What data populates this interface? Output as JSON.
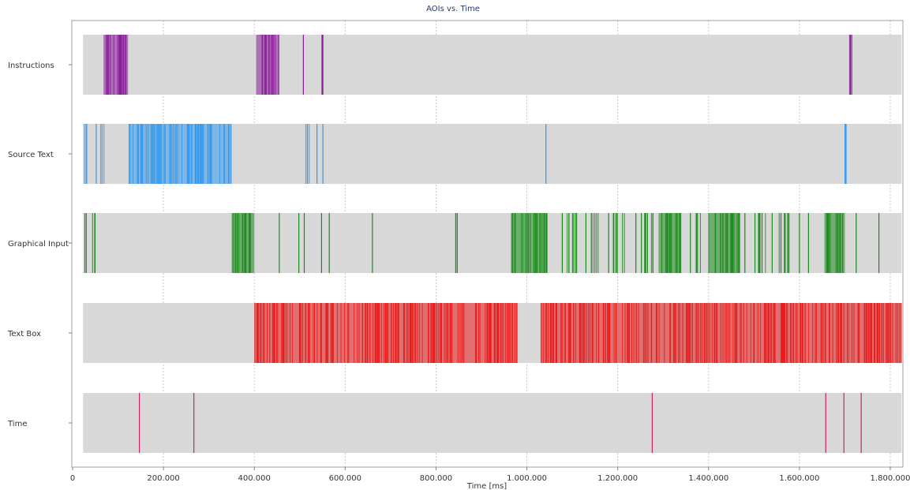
{
  "chart_data": {
    "type": "timeline",
    "title": "AOIs vs. Time",
    "xlabel": "Time [ms]",
    "xlim": [
      0,
      1830000
    ],
    "x_ticks": [
      0,
      200000,
      400000,
      600000,
      800000,
      1000000,
      1200000,
      1400000,
      1600000,
      1800000
    ],
    "x_tick_labels": [
      "0",
      "200.000",
      "400.000",
      "600.000",
      "800.000",
      "1.000.000",
      "1.200.000",
      "1.400.000",
      "1.600.000",
      "1.800.000"
    ],
    "grid": true,
    "track_start": 23000,
    "track_end": 1825000,
    "track_color": "#d8d8d8",
    "rows": [
      {
        "label": "Instructions",
        "color": "#8b1a9b",
        "dense_ranges": [
          [
            68000,
            122000
          ],
          [
            404000,
            455000
          ],
          [
            1705000,
            1718000
          ]
        ],
        "events": [
          508000,
          549000,
          551000
        ]
      },
      {
        "label": "Source Text",
        "color": "#3399ee",
        "dense_ranges": [
          [
            26000,
            34000
          ],
          [
            60000,
            70000
          ],
          [
            123000,
            350000
          ],
          [
            510000,
            522000
          ],
          [
            1700000,
            1704000
          ]
        ],
        "events": [
          52000,
          538000,
          551000,
          1042000
        ]
      },
      {
        "label": "Graphical Input",
        "color": "#1a8a1a",
        "dense_ranges": [
          [
            25000,
            35000
          ],
          [
            40000,
            52000
          ],
          [
            350000,
            400000
          ],
          [
            843000,
            848000
          ],
          [
            965000,
            1045000
          ],
          [
            1085000,
            1095000
          ],
          [
            1100000,
            1115000
          ],
          [
            1140000,
            1160000
          ],
          [
            1190000,
            1220000
          ],
          [
            1250000,
            1280000
          ],
          [
            1290000,
            1340000
          ],
          [
            1370000,
            1390000
          ],
          [
            1400000,
            1470000
          ],
          [
            1500000,
            1530000
          ],
          [
            1550000,
            1580000
          ],
          [
            1655000,
            1700000
          ]
        ],
        "events": [
          455000,
          498000,
          510000,
          548000,
          565000,
          660000,
          1078000,
          1130000,
          1180000,
          1240000,
          1360000,
          1480000,
          1540000,
          1600000,
          1620000,
          1725000,
          1775000
        ]
      },
      {
        "label": "Text Box",
        "color": "#e81c1c",
        "dense_ranges": [
          [
            400000,
            980000
          ],
          [
            1030000,
            1825000
          ]
        ],
        "events": []
      },
      {
        "label": "Time",
        "color": "#d4206a",
        "dense_ranges": [],
        "events": [
          147000,
          267000,
          1276000,
          1658000,
          1698000,
          1736000
        ]
      }
    ]
  }
}
